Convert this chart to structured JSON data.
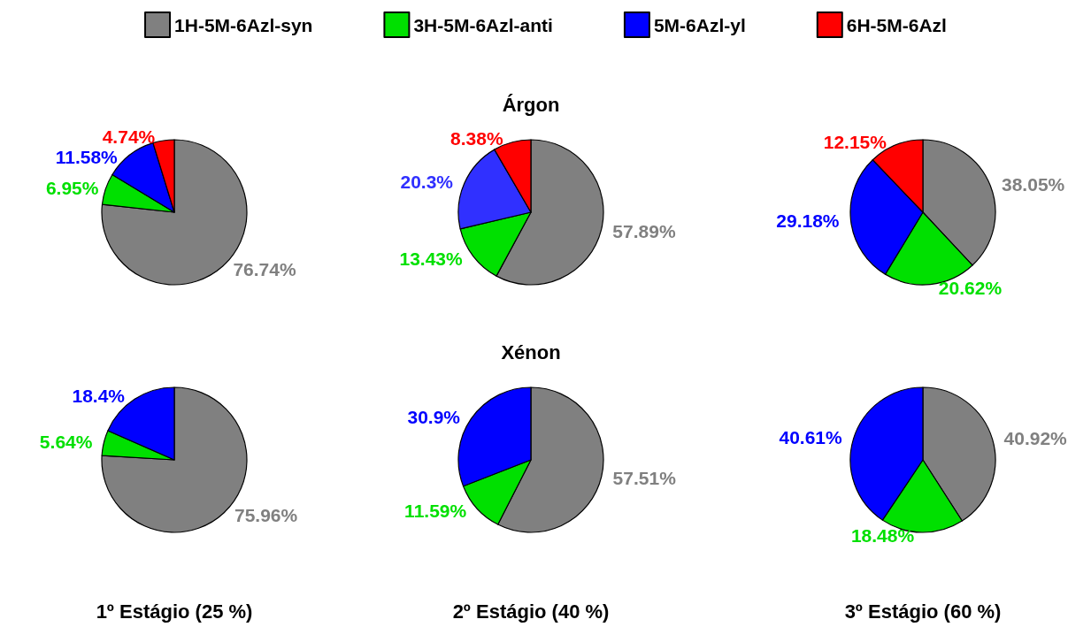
{
  "chart_data": [
    {
      "type": "pie",
      "legend": "top",
      "categories": [
        "1H-5M-6Azl-syn",
        "3H-5M-6Azl-anti",
        "5M-6Azl-yl",
        "6H-5M-6Azl"
      ],
      "values": [
        76.74,
        6.95,
        11.58,
        4.74
      ],
      "colors": [
        "#808080",
        "#00e000",
        "#0000ff",
        "#ff0000"
      ],
      "value_labels": [
        "76.74%",
        "6.95%",
        "11.58%",
        "4.74%"
      ]
    },
    {
      "type": "pie",
      "title": "Árgon",
      "categories": [
        null,
        null,
        null,
        null
      ],
      "values": [
        57.89,
        13.43,
        20.3,
        8.38
      ],
      "colors": [
        "#808080",
        "#00e000",
        "#3030ff",
        "#ff0000"
      ],
      "value_labels": [
        "57.89%",
        "13.43%",
        "20.3%",
        "8.38%"
      ]
    },
    {
      "type": "pie",
      "categories": [
        null,
        null,
        null,
        null
      ],
      "values": [
        38.05,
        20.62,
        29.18,
        12.15
      ],
      "colors": [
        "#808080",
        "#00e000",
        "#0000ff",
        "#ff0000"
      ],
      "value_labels": [
        "38.05%",
        "20.62%",
        "29.18%",
        "12.15%"
      ]
    },
    {
      "type": "pie",
      "xlabel": "1º Estágio (25 %)",
      "categories": [
        null,
        null,
        null
      ],
      "values": [
        75.96,
        5.64,
        18.4
      ],
      "colors": [
        "#808080",
        "#00e000",
        "#0000ff"
      ],
      "value_labels": [
        "75.96%",
        "5.64%",
        "18.4%"
      ]
    },
    {
      "type": "pie",
      "title": "Xénon",
      "xlabel": "2º Estágio (40 %)",
      "categories": [
        null,
        null,
        null
      ],
      "values": [
        57.51,
        11.59,
        30.9
      ],
      "colors": [
        "#808080",
        "#00e000",
        "#0000ff"
      ],
      "value_labels": [
        "57.51%",
        "11.59%",
        "30.9%"
      ]
    },
    {
      "type": "pie",
      "xlabel": "3º Estágio (60 %)",
      "categories": [
        null,
        null,
        null
      ],
      "values": [
        40.92,
        18.48,
        40.61
      ],
      "colors": [
        "#808080",
        "#00e000",
        "#0000ff"
      ],
      "value_labels": [
        "40.92%",
        "18.48%",
        "40.61%"
      ]
    }
  ]
}
